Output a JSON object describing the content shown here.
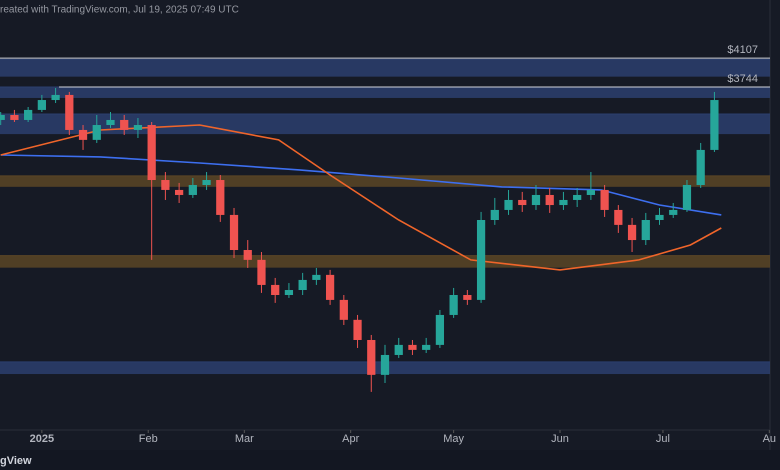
{
  "header": {
    "title": "reated with TradingView.com, Jul 19, 2025 07:49 UTC"
  },
  "footer": {
    "logo": "gView"
  },
  "chart_data": {
    "type": "candlestick",
    "yscale": "log",
    "ylim": [
      1249,
      4946
    ],
    "xlim": [
      -12.2,
      212.2
    ],
    "xticks": [
      {
        "value": 0,
        "label": "2025"
      },
      {
        "value": 31,
        "label": "Feb"
      },
      {
        "value": 59,
        "label": "Mar"
      },
      {
        "value": 90,
        "label": "Apr"
      },
      {
        "value": 120,
        "label": "May"
      },
      {
        "value": 151,
        "label": "Jun"
      },
      {
        "value": 181,
        "label": "Jul"
      },
      {
        "value": 212,
        "label": "Au"
      }
    ],
    "up_color": "#26a69a",
    "down_color": "#ef5350",
    "x": [
      -12,
      -8,
      -4,
      0,
      4,
      8,
      12,
      16,
      20,
      24,
      28,
      32,
      36,
      40,
      44,
      48,
      52,
      56,
      60,
      64,
      68,
      72,
      76,
      80,
      84,
      88,
      92,
      96,
      100,
      104,
      108,
      112,
      116,
      120,
      124,
      128,
      132,
      136,
      140,
      144,
      148,
      152,
      156,
      160,
      164,
      168,
      172,
      176,
      180,
      184,
      188,
      192,
      196
    ],
    "open": [
      3369,
      3423,
      3369,
      3479,
      3591,
      3650,
      3263,
      3161,
      3315,
      3369,
      3263,
      3315,
      2780,
      2693,
      2650,
      2736,
      2780,
      2486,
      2222,
      2153,
      1987,
      1924,
      1955,
      2019,
      2052,
      1894,
      1777,
      1666,
      1490,
      1588,
      1640,
      1614,
      1640,
      1805,
      1924,
      1894,
      2446,
      2526,
      2608,
      2566,
      2650,
      2566,
      2608,
      2650,
      2693,
      2526,
      2408,
      2294,
      2446,
      2486,
      2526,
      2736,
      3061
    ],
    "high": [
      3456,
      3479,
      3512,
      3650,
      3732,
      3685,
      3315,
      3423,
      3456,
      3423,
      3390,
      3347,
      2852,
      2754,
      2798,
      2852,
      2825,
      2542,
      2294,
      2208,
      2032,
      1999,
      2065,
      2098,
      2085,
      1924,
      1805,
      1693,
      1640,
      1677,
      1666,
      1677,
      1834,
      1968,
      1955,
      2510,
      2625,
      2693,
      2676,
      2736,
      2710,
      2676,
      2710,
      2852,
      2736,
      2566,
      2462,
      2502,
      2542,
      2583,
      2780,
      3130,
      3685
    ],
    "low": [
      3315,
      3347,
      3347,
      3456,
      3557,
      3211,
      3061,
      3130,
      3284,
      3211,
      3180,
      2153,
      2608,
      2583,
      2625,
      2693,
      2431,
      2166,
      2098,
      1937,
      1876,
      1906,
      1924,
      1987,
      1864,
      1748,
      1624,
      1411,
      1452,
      1573,
      1588,
      1598,
      1624,
      1788,
      1864,
      1876,
      2408,
      2486,
      2510,
      2526,
      2502,
      2526,
      2550,
      2608,
      2470,
      2347,
      2208,
      2258,
      2408,
      2462,
      2510,
      2710,
      3041
    ],
    "close": [
      3423,
      3369,
      3479,
      3591,
      3650,
      3263,
      3161,
      3315,
      3369,
      3263,
      3315,
      2780,
      2693,
      2650,
      2736,
      2780,
      2486,
      2222,
      2153,
      1987,
      1924,
      1955,
      2019,
      2052,
      1894,
      1777,
      1666,
      1490,
      1588,
      1640,
      1614,
      1640,
      1805,
      1924,
      1894,
      2446,
      2526,
      2608,
      2566,
      2650,
      2566,
      2608,
      2650,
      2693,
      2526,
      2408,
      2294,
      2446,
      2486,
      2526,
      2736,
      3061,
      3591
    ],
    "series": [
      {
        "color": "#3d6ff0",
        "x": [
          -12,
          17,
          46,
          75,
          104,
          134,
          163,
          180,
          198
        ],
        "values": [
          3012,
          2993,
          2936,
          2871,
          2798,
          2719,
          2693,
          2566,
          2486
        ]
      },
      {
        "color": "#f0652a",
        "x": [
          -12,
          17,
          46,
          69,
          84,
          104,
          125,
          151,
          174,
          189,
          198
        ],
        "values": [
          3012,
          3263,
          3315,
          3161,
          2825,
          2446,
          2153,
          2085,
          2153,
          2258,
          2384
        ]
      }
    ],
    "zones": [
      {
        "low": 3870,
        "high": 4090,
        "color": "#2b3f6e"
      },
      {
        "low": 3615,
        "high": 3744,
        "color": "#2b3f6e"
      },
      {
        "low": 3220,
        "high": 3434,
        "color": "#2b3f6e"
      },
      {
        "low": 2720,
        "high": 2817,
        "color": "#5b4626"
      },
      {
        "low": 2100,
        "high": 2182,
        "color": "#5b4626"
      },
      {
        "low": 1494,
        "high": 1553,
        "color": "#2b3f6e"
      }
    ],
    "levels": [
      {
        "value": 4107,
        "label": "$4107",
        "from": -12.2
      },
      {
        "value": 3744,
        "label": "$3744",
        "from": 5
      }
    ]
  }
}
